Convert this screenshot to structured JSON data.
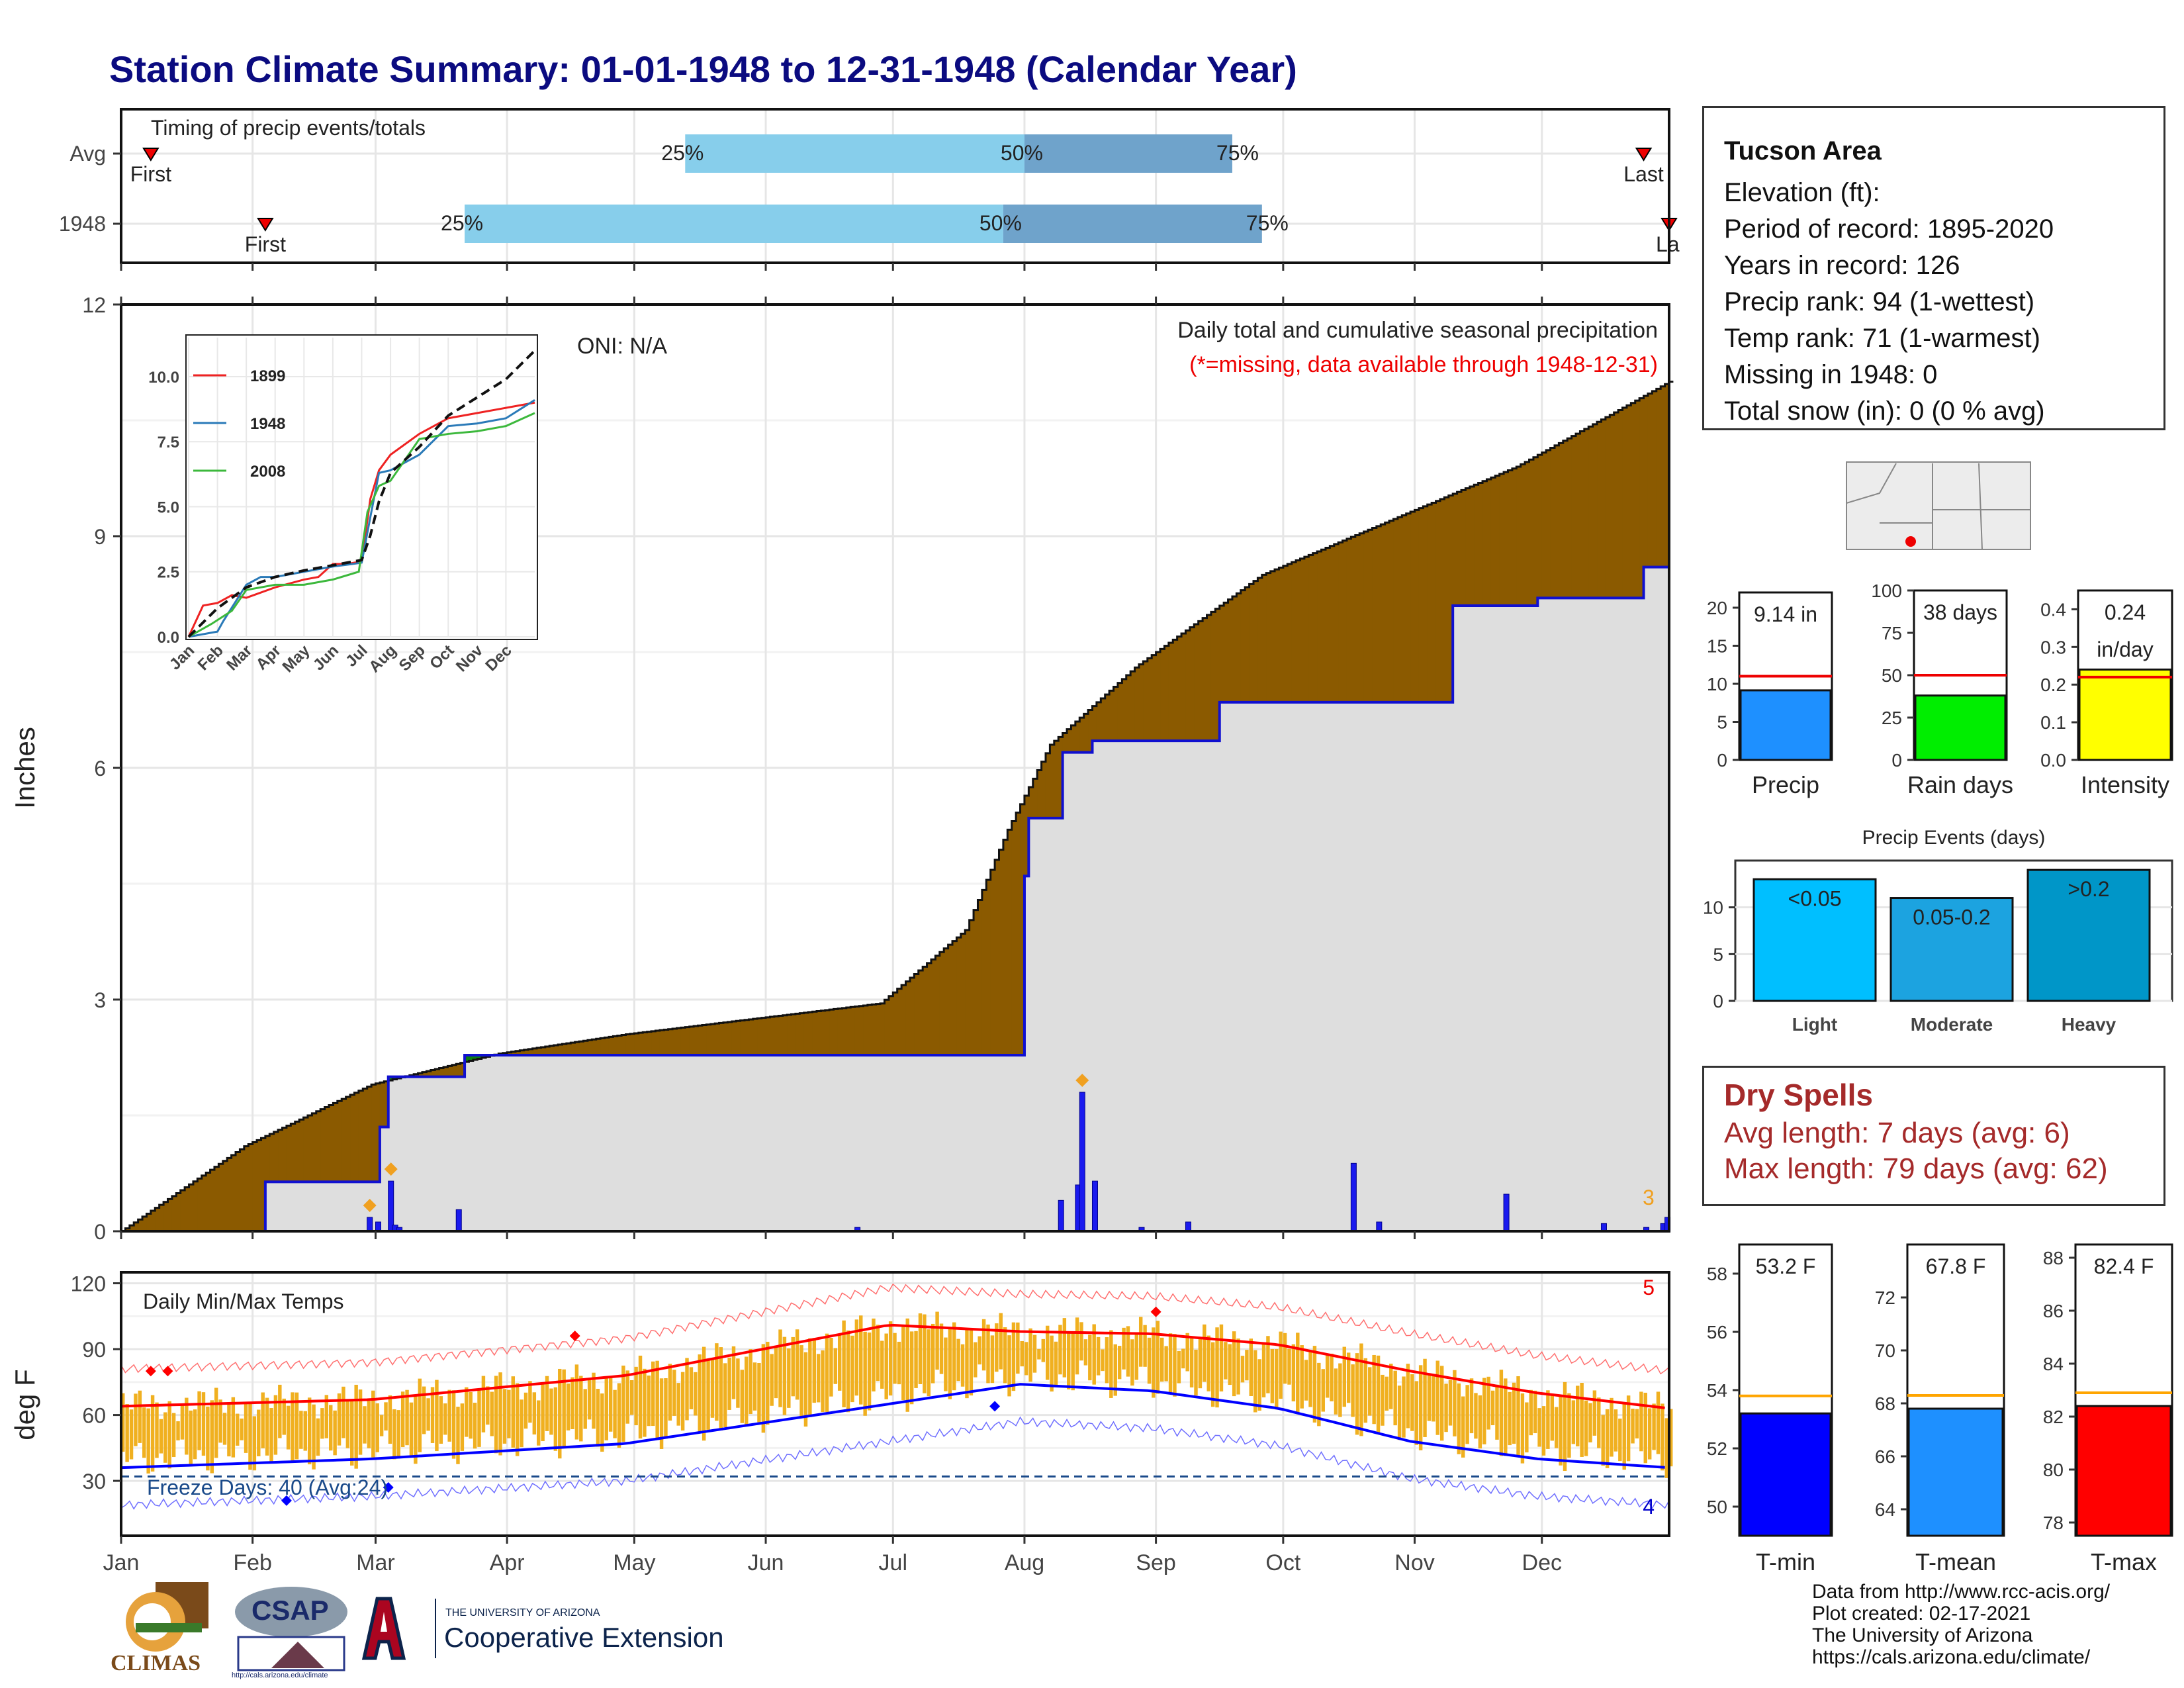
{
  "title": "Station Climate Summary: 01-01-1948 to 12-31-1948 (Calendar Year)",
  "colors": {
    "title": "#0b0b80",
    "cum_brown": "#8b5a00",
    "cum_green": "#0a7d10",
    "obs_blue": "#1010d0",
    "quartile_light": "#87ceeb",
    "quartile_dark": "#6fa3cb",
    "tmin": "#0000ff",
    "tmean": "#1e90ff",
    "tmax": "#ff0000",
    "temp_bar": "#f0b020",
    "spell": "#a52a2a"
  },
  "timing": {
    "label": "Timing of precip events/totals",
    "rows": [
      "Avg",
      "1948"
    ],
    "marker_labels": {
      "first": "First",
      "last": "Last",
      "last_cut": "La"
    },
    "pct_labels": [
      "25%",
      "50%",
      "75%"
    ],
    "chart_data": {
      "type": "bar",
      "series": [
        {
          "name": "Avg",
          "first": "Jan 8",
          "q25": "May 13",
          "q50": "Aug 1",
          "q75": "Sep 19",
          "last": "Dec 25"
        },
        {
          "name": "1948",
          "first": "Feb 4",
          "q25": "Mar 22",
          "q50": "Jul 27",
          "q75": "Sep 26",
          "last": "Dec 31"
        }
      ]
    }
  },
  "main": {
    "ylabel": "Inches",
    "yticks": [
      "0",
      "3",
      "6",
      "9",
      "12"
    ],
    "months": [
      "Jan",
      "Feb",
      "Mar",
      "Apr",
      "May",
      "Jun",
      "Jul",
      "Aug",
      "Sep",
      "Oct",
      "Nov",
      "Dec"
    ],
    "annot_top": "Daily total and cumulative seasonal precipitation",
    "annot_missing": "(*=missing, data available through 1948-12-31)",
    "oni": "ONI: N/A",
    "count_label": "3",
    "chart_data": {
      "type": "area",
      "ylim": [
        0,
        12
      ],
      "avg_cumulative": {
        "x": [
          1,
          30,
          60,
          90,
          120,
          150,
          180,
          200,
          210,
          220,
          240,
          270,
          300,
          330,
          366
        ],
        "y": [
          0,
          1.1,
          1.9,
          2.3,
          2.55,
          2.75,
          2.95,
          3.9,
          5.2,
          6.3,
          7.3,
          8.5,
          9.2,
          9.9,
          11.0
        ]
      },
      "year_cumulative": {
        "x": [
          1,
          34,
          35,
          57,
          62,
          64,
          81,
          82,
          210,
          214,
          215,
          223,
          230,
          240,
          260,
          270,
          315,
          335,
          355,
          360,
          366
        ],
        "y": [
          0,
          0,
          0.64,
          0.64,
          1.35,
          2.0,
          2.0,
          2.28,
          2.28,
          4.6,
          5.35,
          6.2,
          6.35,
          6.35,
          6.85,
          6.85,
          8.1,
          8.2,
          8.2,
          8.6,
          9.14
        ]
      },
      "daily_bars": {
        "x": [
          59,
          61,
          64,
          65,
          66,
          80,
          174,
          222,
          226,
          227,
          230,
          241,
          252,
          291,
          297,
          327,
          350,
          360,
          364,
          365
        ],
        "y": [
          0.18,
          0.12,
          0.65,
          0.08,
          0.05,
          0.28,
          0.05,
          0.4,
          0.6,
          1.8,
          0.65,
          0.05,
          0.12,
          0.88,
          0.12,
          0.48,
          0.1,
          0.05,
          0.1,
          0.18
        ]
      }
    },
    "inset": {
      "yticks": [
        "0.0",
        "2.5",
        "5.0",
        "7.5",
        "10.0"
      ],
      "months": [
        "Jan",
        "Feb",
        "Mar",
        "Apr",
        "May",
        "Jun",
        "Jul",
        "Aug",
        "Sep",
        "Oct",
        "Nov",
        "Dec"
      ],
      "legend": [
        "1899",
        "1948",
        "2008"
      ],
      "chart_data": {
        "type": "line",
        "series": [
          {
            "name": "1899",
            "x": [
              0,
              0.5,
              1,
              1.5,
              2,
              3,
              4,
              4.5,
              5,
              5.5,
              6,
              6.3,
              6.6,
              7,
              8,
              9,
              10,
              11,
              12
            ],
            "y": [
              0,
              1.2,
              1.3,
              1.6,
              1.5,
              1.9,
              2.2,
              2.3,
              2.8,
              2.8,
              2.9,
              5.3,
              6.4,
              7.0,
              7.8,
              8.4,
              8.6,
              8.8,
              9.0
            ]
          },
          {
            "name": "1948",
            "x": [
              0,
              1,
              1.2,
              2,
              2.5,
              3,
              5,
              5.7,
              6,
              6.3,
              6.6,
              7,
              8,
              9,
              10,
              11,
              12
            ],
            "y": [
              0,
              0.2,
              0.6,
              2.0,
              2.3,
              2.3,
              2.7,
              2.8,
              2.85,
              4.6,
              6.3,
              6.4,
              7.0,
              8.1,
              8.2,
              8.4,
              9.1
            ]
          },
          {
            "name": "2008",
            "x": [
              0,
              0.8,
              1.5,
              2,
              2.5,
              3,
              4,
              5,
              5.9,
              6.2,
              6.6,
              7,
              8,
              9,
              10,
              11,
              12
            ],
            "y": [
              0,
              0.5,
              1.0,
              1.8,
              1.9,
              2.0,
              2.0,
              2.2,
              2.5,
              4.8,
              5.8,
              6.0,
              7.6,
              7.8,
              7.9,
              8.1,
              8.6
            ]
          },
          {
            "name": "Avg",
            "x": [
              0,
              1,
              2,
              3,
              4,
              5,
              6,
              6.3,
              6.6,
              7,
              8,
              9,
              10,
              11,
              12
            ],
            "y": [
              0,
              1.1,
              1.9,
              2.3,
              2.55,
              2.75,
              2.95,
              3.9,
              5.2,
              6.3,
              7.3,
              8.5,
              9.2,
              9.9,
              11.0
            ]
          }
        ]
      }
    }
  },
  "temps": {
    "title": "Daily Min/Max Temps",
    "ylabel": "deg F",
    "yticks": [
      "30",
      "60",
      "90",
      "120"
    ],
    "freeze": "Freeze Days: 40 (Avg:24)",
    "count_hi": "5",
    "count_lo": "4",
    "chart_data": {
      "type": "line",
      "ylim": [
        5,
        125
      ],
      "freeze_line": 32,
      "normal_max": {
        "x": [
          1,
          60,
          120,
          182,
          213,
          244,
          274,
          305,
          335,
          366
        ],
        "y": [
          64,
          67,
          78,
          101,
          98,
          97,
          92,
          80,
          70,
          63
        ]
      },
      "normal_min": {
        "x": [
          1,
          60,
          120,
          182,
          213,
          244,
          274,
          305,
          335,
          366
        ],
        "y": [
          36,
          40,
          47,
          65,
          74,
          71,
          63,
          48,
          40,
          36
        ]
      }
    }
  },
  "stats": {
    "precip": {
      "value_label": "9.14 in",
      "name": "Precip",
      "value": 9.14,
      "avg": 11.0,
      "yticks": [
        "0",
        "5",
        "10",
        "15",
        "20"
      ],
      "ymax": 22
    },
    "raindays": {
      "value_label": "38 days",
      "name": "Rain days",
      "value": 38,
      "avg": 50,
      "yticks": [
        "0",
        "25",
        "50",
        "75",
        "100"
      ],
      "ymax": 100
    },
    "intensity": {
      "value_label": "0.24",
      "value_label2": "in/day",
      "name": "Intensity",
      "value": 0.24,
      "avg": 0.22,
      "yticks": [
        "0.0",
        "0.1",
        "0.2",
        "0.3",
        "0.4"
      ],
      "ymax": 0.45
    }
  },
  "events": {
    "title": "Precip Events (days)",
    "yticks": [
      "0",
      "5",
      "10"
    ],
    "chart_data": {
      "type": "bar",
      "categories": [
        "Light",
        "Moderate",
        "Heavy"
      ],
      "bar_labels": [
        "<0.05",
        "0.05-0.2",
        ">0.2"
      ],
      "values": [
        13,
        11,
        14
      ],
      "ylim": [
        0,
        15
      ]
    }
  },
  "info": {
    "station": "Tucson Area",
    "lines": [
      "Elevation (ft):",
      "Period of record: 1895-2020",
      "Years in record: 126",
      "Precip rank: 94 (1-wettest)",
      "Temp rank: 71 (1-warmest)",
      "Missing in 1948: 0",
      "Total snow (in): 0 (0 % avg)"
    ]
  },
  "dry": {
    "title": "Dry Spells",
    "line1": "Avg length: 7 days (avg: 6)",
    "line2": "Max length: 79 days (avg: 62)"
  },
  "tstats": {
    "tmin": {
      "label": "53.2 F",
      "name": "T-min",
      "value": 53.2,
      "avg": 53.8,
      "yticks": [
        "50",
        "52",
        "54",
        "56",
        "58"
      ]
    },
    "tmean": {
      "label": "67.8 F",
      "name": "T-mean",
      "value": 67.8,
      "avg": 68.3,
      "yticks": [
        "64",
        "66",
        "68",
        "70",
        "72"
      ]
    },
    "tmax": {
      "label": "82.4 F",
      "name": "T-max",
      "value": 82.4,
      "avg": 82.9,
      "yticks": [
        "78",
        "80",
        "82",
        "84",
        "86",
        "88"
      ]
    }
  },
  "footer": {
    "lines": [
      "Data from http://www.rcc-acis.org/",
      "Plot created: 02-17-2021",
      "The University of Arizona",
      "https://cals.arizona.edu/climate/"
    ],
    "logo_climas": "CLIMAS",
    "logo_csap": "CSAP",
    "logo_csap_url": "http://cals.arizona.edu/climate",
    "logo_ua_top": "THE UNIVERSITY OF ARIZONA",
    "logo_ua_bottom": "Cooperative Extension"
  }
}
